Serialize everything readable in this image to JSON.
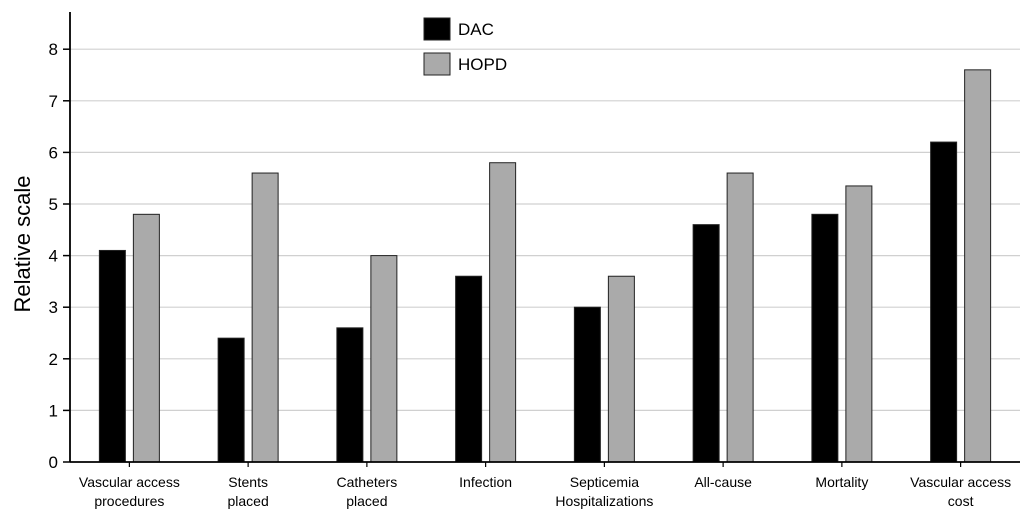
{
  "chart_data": {
    "type": "bar",
    "title": "",
    "xlabel": "",
    "ylabel": "Relative scale",
    "ylim": [
      0,
      8.5
    ],
    "yticks": [
      0,
      1,
      2,
      3,
      4,
      5,
      6,
      7,
      8
    ],
    "grid": true,
    "legend_position": "top-center",
    "categories": [
      [
        "Vascular access",
        "procedures"
      ],
      [
        "Stents",
        "placed"
      ],
      [
        "Catheters",
        "placed"
      ],
      [
        "Infection"
      ],
      [
        "Septicemia"
      ],
      [
        "All-cause"
      ],
      [
        "Mortality"
      ],
      [
        "Vascular access",
        "cost"
      ]
    ],
    "group_label": {
      "text": "Hospitalizations",
      "spans": [
        3,
        5
      ]
    },
    "series": [
      {
        "name": "DAC",
        "color": "#000000",
        "values": [
          4.1,
          2.4,
          2.6,
          3.6,
          3.0,
          4.6,
          4.8,
          6.2
        ]
      },
      {
        "name": "HOPD",
        "color": "#aaaaaa",
        "values": [
          4.8,
          5.6,
          4.0,
          5.8,
          3.6,
          5.6,
          5.35,
          7.6
        ]
      }
    ]
  }
}
